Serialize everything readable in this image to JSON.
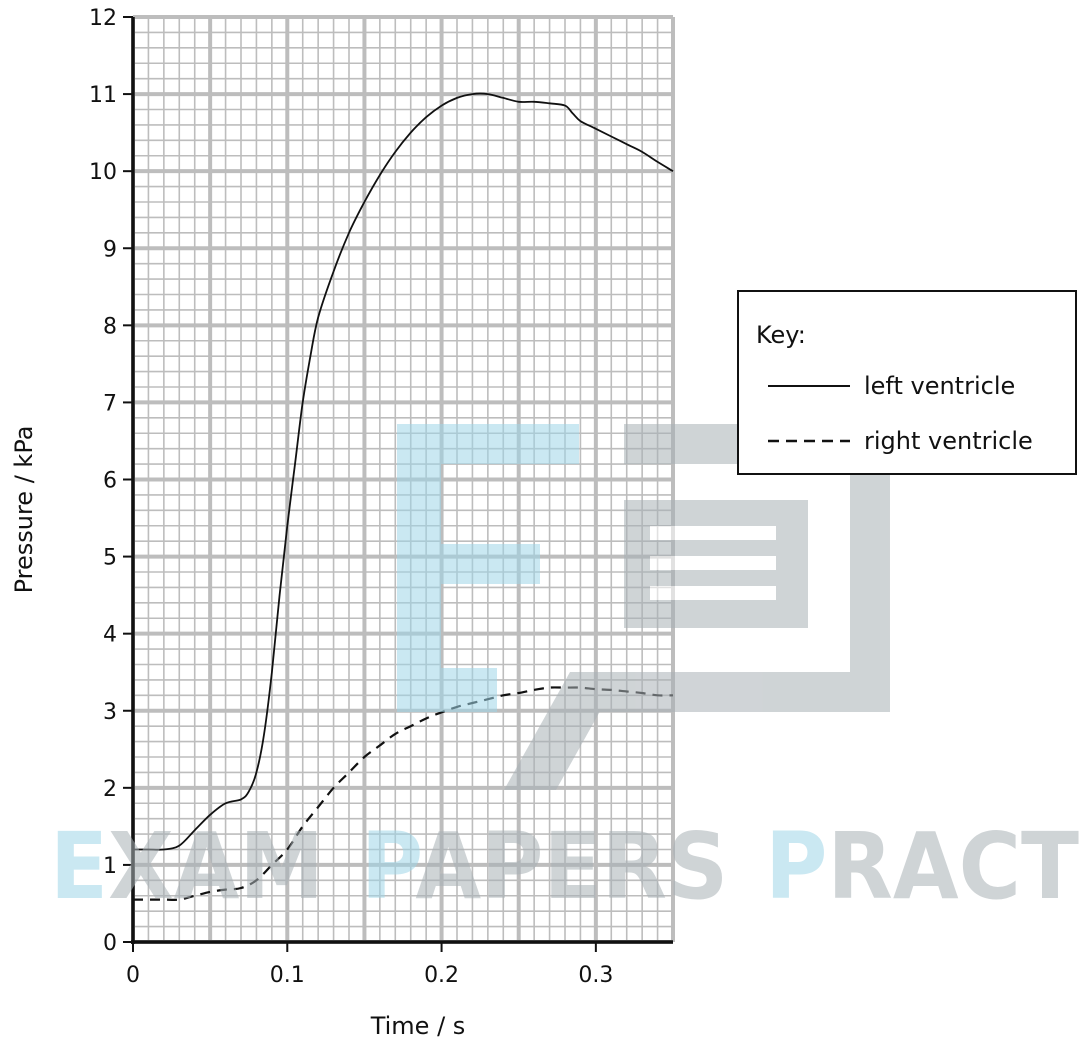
{
  "chart_data": {
    "type": "line",
    "xlabel": "Time / s",
    "ylabel": "Pressure / kPa",
    "xlim": [
      0,
      0.35
    ],
    "ylim": [
      0,
      12
    ],
    "x_ticks": [
      "0",
      "0.1",
      "0.2",
      "0.3"
    ],
    "y_ticks": [
      "0",
      "1",
      "2",
      "3",
      "4",
      "5",
      "6",
      "7",
      "8",
      "9",
      "10",
      "11",
      "12"
    ],
    "grid": true,
    "legend": {
      "title": "Key:",
      "position": "right"
    },
    "series": [
      {
        "name": "left ventricle",
        "style": "solid",
        "color": "#111111",
        "x": [
          0,
          0.01,
          0.02,
          0.03,
          0.04,
          0.05,
          0.06,
          0.07,
          0.075,
          0.08,
          0.085,
          0.09,
          0.095,
          0.1,
          0.105,
          0.11,
          0.115,
          0.12,
          0.13,
          0.14,
          0.15,
          0.16,
          0.17,
          0.18,
          0.19,
          0.2,
          0.21,
          0.22,
          0.23,
          0.24,
          0.25,
          0.26,
          0.27,
          0.28,
          0.285,
          0.29,
          0.3,
          0.31,
          0.32,
          0.33,
          0.34,
          0.35
        ],
        "y": [
          1.2,
          1.2,
          1.2,
          1.25,
          1.45,
          1.65,
          1.8,
          1.85,
          1.95,
          2.2,
          2.7,
          3.5,
          4.5,
          5.4,
          6.2,
          7.0,
          7.6,
          8.1,
          8.7,
          9.2,
          9.6,
          9.95,
          10.25,
          10.5,
          10.7,
          10.85,
          10.95,
          11.0,
          11.0,
          10.95,
          10.9,
          10.9,
          10.88,
          10.85,
          10.75,
          10.65,
          10.55,
          10.45,
          10.35,
          10.25,
          10.12,
          10.0
        ]
      },
      {
        "name": "right ventricle",
        "style": "dashed",
        "color": "#111111",
        "x": [
          0,
          0.01,
          0.02,
          0.03,
          0.04,
          0.05,
          0.06,
          0.07,
          0.08,
          0.09,
          0.1,
          0.11,
          0.12,
          0.13,
          0.14,
          0.15,
          0.16,
          0.17,
          0.18,
          0.19,
          0.2,
          0.21,
          0.22,
          0.23,
          0.24,
          0.25,
          0.26,
          0.27,
          0.28,
          0.29,
          0.3,
          0.31,
          0.32,
          0.33,
          0.34,
          0.35
        ],
        "y": [
          0.55,
          0.55,
          0.55,
          0.55,
          0.6,
          0.65,
          0.68,
          0.7,
          0.8,
          1.0,
          1.2,
          1.5,
          1.75,
          2.0,
          2.2,
          2.4,
          2.55,
          2.7,
          2.8,
          2.9,
          2.98,
          3.05,
          3.1,
          3.15,
          3.2,
          3.23,
          3.27,
          3.3,
          3.3,
          3.3,
          3.28,
          3.27,
          3.25,
          3.23,
          3.2,
          3.2
        ]
      }
    ]
  },
  "watermark": {
    "text_left": "E",
    "text_rest": "XAM",
    "text_p1": "P",
    "text_mid": "APERS",
    "text_p2": "P",
    "text_end": "RACT",
    "blue": "#9fd6e8",
    "gray": "#a9b1b6"
  }
}
